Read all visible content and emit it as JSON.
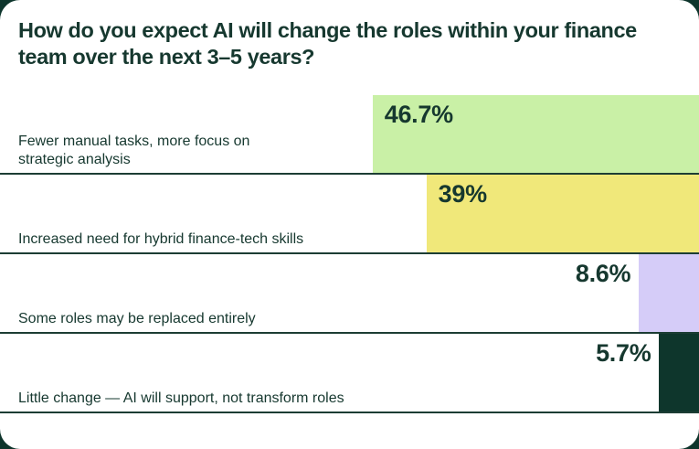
{
  "colors": {
    "page_background": "#0E352C",
    "card_background": "#FFFFFF",
    "text": "#16382F",
    "divider": "#1C3D34"
  },
  "chart_data": {
    "type": "bar",
    "orientation": "horizontal-right-aligned",
    "title": "How do you expect AI will change the roles within your finance team over the next 3–5 years?",
    "title_lines": [
      "How do you expect AI will change the roles within your finance",
      "team over the next 3–5 years?"
    ],
    "categories": [
      "Fewer manual tasks, more focus on strategic analysis",
      "Increased need for hybrid finance-tech skills",
      "Some roles may be replaced entirely",
      "Little change — AI will support, not transform roles"
    ],
    "category_lines": [
      [
        "Fewer manual tasks, more focus on",
        "strategic analysis"
      ],
      [
        "Increased need for hybrid finance-tech skills"
      ],
      [
        "Some roles may be replaced entirely"
      ],
      [
        "Little change — AI will support, not transform roles"
      ]
    ],
    "values": [
      46.7,
      39,
      8.6,
      5.7
    ],
    "value_labels": [
      "46.7%",
      "39%",
      "8.6%",
      "5.7%"
    ],
    "value_label_placement": [
      "inside",
      "inside",
      "outside",
      "outside"
    ],
    "bar_colors": [
      "#C9F0A6",
      "#F0E87A",
      "#D5CCF8",
      "#0E362C"
    ],
    "xlim": [
      0,
      100
    ],
    "grid": false,
    "legend": false
  }
}
